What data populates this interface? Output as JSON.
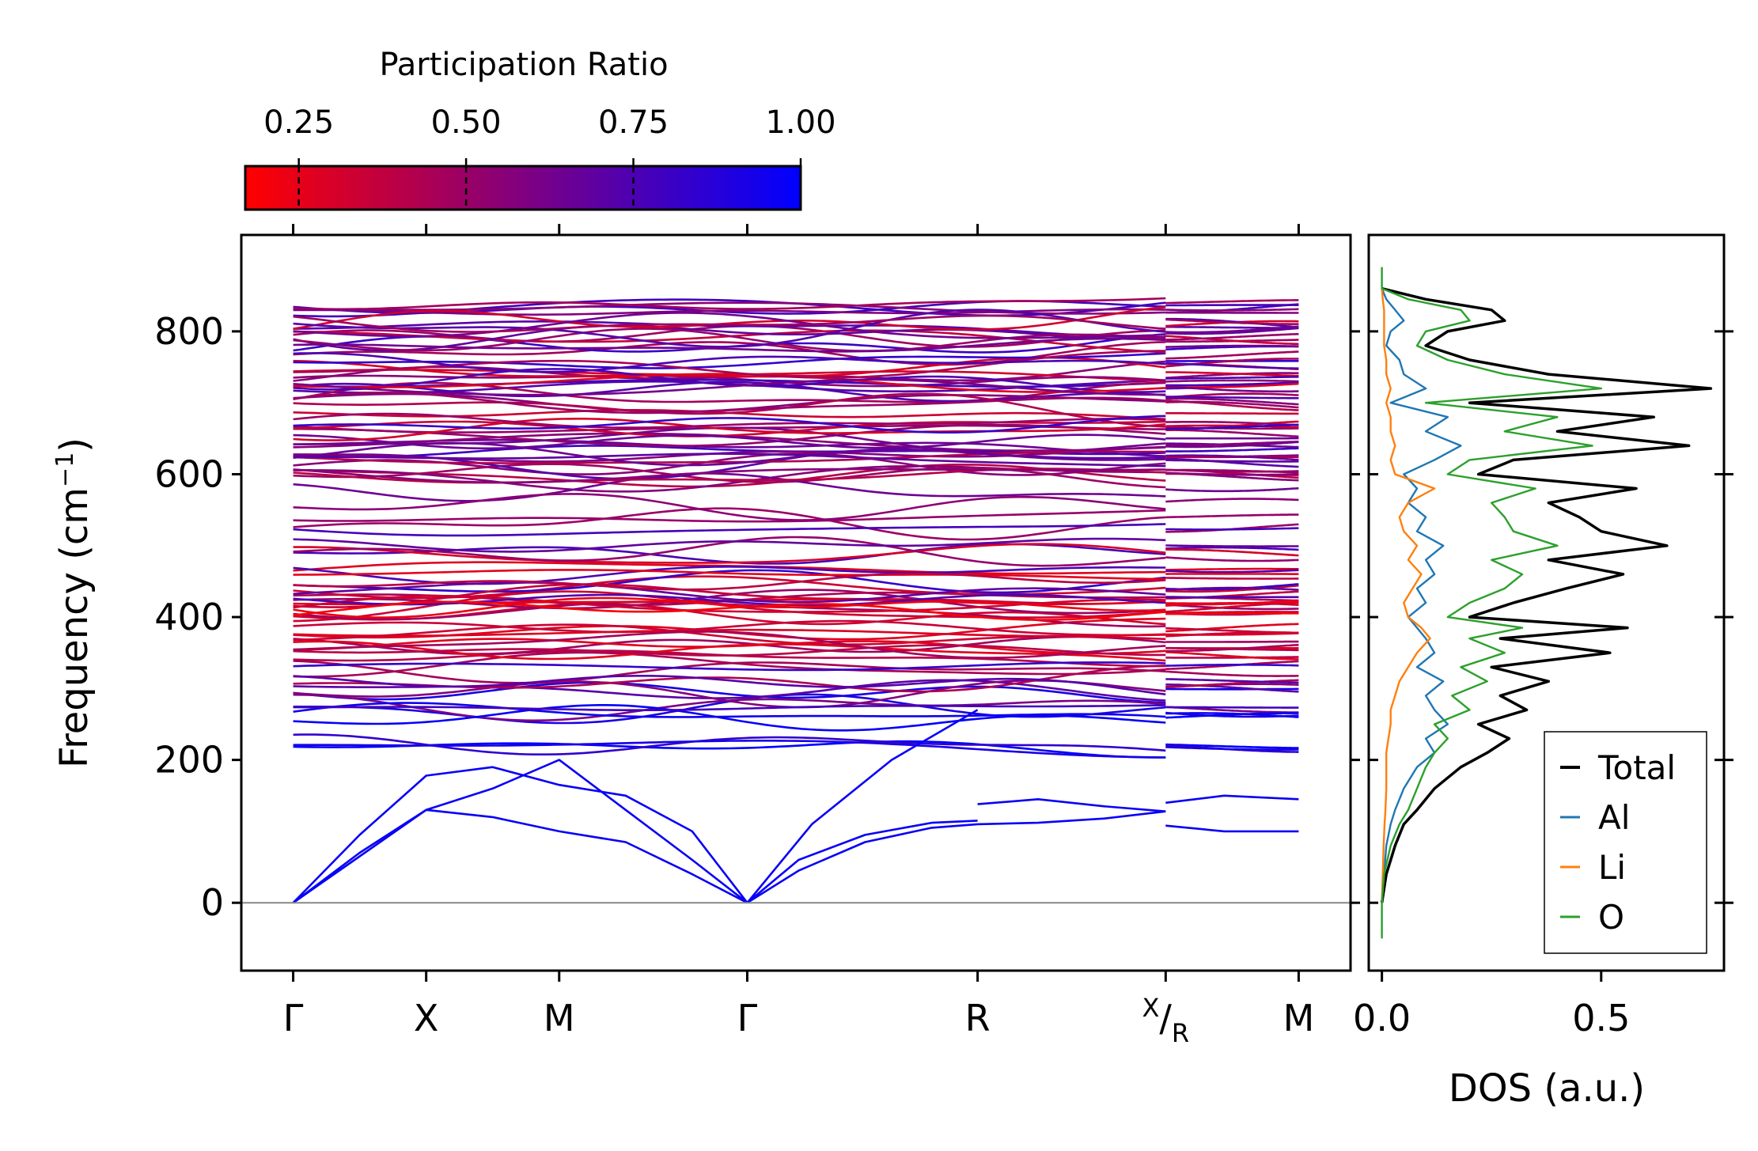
{
  "chart_data": [
    {
      "type": "line",
      "subtype": "phonon-band-structure",
      "ylabel": "Frequency (cm",
      "ylabel_superscript": "−1",
      "ylabel_close": ")",
      "ylim": [
        -95,
        935
      ],
      "yticks": [
        0,
        200,
        400,
        600,
        800
      ],
      "ytick_labels": [
        "0",
        "200",
        "400",
        "600",
        "800"
      ],
      "zero_line": 0,
      "path_points": [
        {
          "name": "gamma1",
          "label": "Γ",
          "x": 0
        },
        {
          "name": "x",
          "label": "X",
          "x": 1
        },
        {
          "name": "m1",
          "label": "M",
          "x": 2
        },
        {
          "name": "gamma2",
          "label": "Γ",
          "x": 3.414
        },
        {
          "name": "r",
          "label": "R",
          "x": 5.146
        },
        {
          "name": "xr",
          "label": "X",
          "label_sub": "R",
          "x": 6.56
        },
        {
          "name": "m2",
          "label": "M",
          "x": 7.56
        }
      ],
      "xlim": [
        -0.39,
        7.95
      ],
      "branch_break_at": 6.56,
      "acoustic_branches": [
        {
          "x": [
            0,
            0.5,
            1,
            1.5,
            2,
            2.5,
            3,
            3.414
          ],
          "y": [
            0,
            70,
            130,
            160,
            200,
            130,
            60,
            0
          ]
        },
        {
          "x": [
            0,
            0.5,
            1,
            1.5,
            2,
            2.5,
            3,
            3.414
          ],
          "y": [
            0,
            65,
            130,
            120,
            100,
            85,
            40,
            0
          ]
        },
        {
          "x": [
            0,
            0.5,
            1,
            1.5,
            2,
            2.5,
            3,
            3.414
          ],
          "y": [
            0,
            95,
            178,
            190,
            165,
            150,
            100,
            0
          ]
        },
        {
          "x": [
            3.414,
            3.8,
            4.3,
            4.8,
            5.146
          ],
          "y": [
            0,
            45,
            85,
            105,
            110
          ]
        },
        {
          "x": [
            3.414,
            3.8,
            4.3,
            4.8,
            5.146
          ],
          "y": [
            0,
            60,
            95,
            112,
            115
          ]
        },
        {
          "x": [
            3.414,
            3.9,
            4.5,
            5.146
          ],
          "y": [
            0,
            110,
            200,
            270
          ]
        },
        {
          "x": [
            5.146,
            5.6,
            6.1,
            6.56
          ],
          "y": [
            110,
            112,
            118,
            128
          ]
        },
        {
          "x": [
            5.146,
            5.6,
            6.1,
            6.56
          ],
          "y": [
            138,
            145,
            135,
            128
          ]
        },
        {
          "x": [
            6.56,
            7.0,
            7.56
          ],
          "y": [
            108,
            100,
            100
          ]
        },
        {
          "x": [
            6.56,
            7.0,
            7.56
          ],
          "y": [
            140,
            150,
            145
          ]
        }
      ],
      "optical_band_range": [
        210,
        850
      ],
      "participation_ratio_note": "line color encodes participation ratio (red = low, blue = high)"
    },
    {
      "type": "line",
      "subtype": "density-of-states",
      "xlabel": "DOS (a.u.)",
      "xlim": [
        -0.03,
        0.78
      ],
      "xticks": [
        0.0,
        0.5
      ],
      "xtick_labels": [
        "0.0",
        "0.5"
      ],
      "ylim": [
        -95,
        935
      ],
      "legend_position": "lower-right",
      "series": [
        {
          "name": "Total",
          "color": "#000000",
          "y": [
            0,
            40,
            80,
            110,
            130,
            160,
            190,
            210,
            230,
            250,
            270,
            290,
            310,
            330,
            350,
            370,
            385,
            400,
            420,
            440,
            460,
            480,
            500,
            520,
            540,
            560,
            580,
            600,
            620,
            640,
            660,
            680,
            700,
            720,
            740,
            760,
            780,
            800,
            815,
            830,
            845,
            860
          ],
          "values": [
            0.0,
            0.01,
            0.03,
            0.05,
            0.08,
            0.12,
            0.18,
            0.24,
            0.29,
            0.22,
            0.33,
            0.27,
            0.38,
            0.25,
            0.52,
            0.27,
            0.56,
            0.2,
            0.3,
            0.42,
            0.55,
            0.38,
            0.65,
            0.5,
            0.45,
            0.38,
            0.58,
            0.22,
            0.3,
            0.7,
            0.4,
            0.62,
            0.2,
            0.75,
            0.38,
            0.2,
            0.1,
            0.15,
            0.28,
            0.25,
            0.1,
            0.0
          ]
        },
        {
          "name": "Al",
          "color": "#1f77b4",
          "y": [
            0,
            40,
            80,
            110,
            130,
            160,
            190,
            210,
            230,
            250,
            270,
            290,
            310,
            330,
            350,
            370,
            385,
            400,
            420,
            440,
            460,
            480,
            500,
            520,
            540,
            560,
            580,
            600,
            620,
            640,
            660,
            680,
            700,
            720,
            740,
            760,
            780,
            800,
            815,
            830,
            845,
            860
          ],
          "values": [
            0.0,
            0.005,
            0.01,
            0.02,
            0.03,
            0.05,
            0.08,
            0.12,
            0.1,
            0.15,
            0.12,
            0.1,
            0.14,
            0.08,
            0.12,
            0.1,
            0.08,
            0.06,
            0.1,
            0.08,
            0.12,
            0.1,
            0.14,
            0.08,
            0.1,
            0.06,
            0.08,
            0.05,
            0.12,
            0.18,
            0.1,
            0.15,
            0.02,
            0.1,
            0.05,
            0.04,
            0.01,
            0.02,
            0.05,
            0.03,
            0.01,
            0.0
          ]
        },
        {
          "name": "Li",
          "color": "#ff7f0e",
          "y": [
            0,
            40,
            80,
            110,
            130,
            160,
            190,
            210,
            230,
            250,
            270,
            290,
            310,
            330,
            350,
            370,
            385,
            400,
            420,
            440,
            460,
            480,
            500,
            520,
            540,
            560,
            580,
            600,
            620,
            640,
            660,
            680,
            700,
            720,
            740,
            760,
            780,
            800,
            815,
            830,
            845,
            860
          ],
          "values": [
            0.0,
            0.002,
            0.004,
            0.006,
            0.008,
            0.01,
            0.01,
            0.01,
            0.015,
            0.02,
            0.02,
            0.03,
            0.04,
            0.06,
            0.08,
            0.11,
            0.09,
            0.06,
            0.05,
            0.07,
            0.09,
            0.06,
            0.08,
            0.05,
            0.04,
            0.06,
            0.12,
            0.03,
            0.02,
            0.03,
            0.02,
            0.02,
            0.01,
            0.02,
            0.01,
            0.01,
            0.005,
            0.005,
            0.005,
            0.005,
            0.002,
            0.0
          ]
        },
        {
          "name": "O",
          "color": "#2ca02c",
          "y": [
            -50,
            0,
            40,
            80,
            110,
            130,
            160,
            190,
            210,
            230,
            250,
            270,
            290,
            310,
            330,
            350,
            370,
            385,
            400,
            420,
            440,
            460,
            480,
            500,
            520,
            540,
            560,
            580,
            600,
            620,
            640,
            660,
            680,
            700,
            720,
            740,
            760,
            780,
            800,
            815,
            830,
            845,
            860,
            890
          ],
          "values": [
            0.0,
            0.0,
            0.005,
            0.02,
            0.04,
            0.06,
            0.08,
            0.1,
            0.12,
            0.15,
            0.12,
            0.2,
            0.16,
            0.24,
            0.18,
            0.28,
            0.2,
            0.32,
            0.15,
            0.2,
            0.28,
            0.32,
            0.25,
            0.4,
            0.3,
            0.28,
            0.25,
            0.35,
            0.15,
            0.2,
            0.48,
            0.28,
            0.4,
            0.1,
            0.5,
            0.28,
            0.15,
            0.08,
            0.1,
            0.2,
            0.18,
            0.06,
            0.0,
            0.0
          ]
        }
      ]
    }
  ],
  "colorbar": {
    "title": "Participation Ratio",
    "min": 0.17,
    "max": 1.0,
    "ticks": [
      0.25,
      0.5,
      0.75,
      1.0
    ],
    "tick_labels": [
      "0.25",
      "0.50",
      "0.75",
      "1.00"
    ],
    "color_low": "#ff0000",
    "color_mid": "#800080",
    "color_high": "#0000ff"
  }
}
